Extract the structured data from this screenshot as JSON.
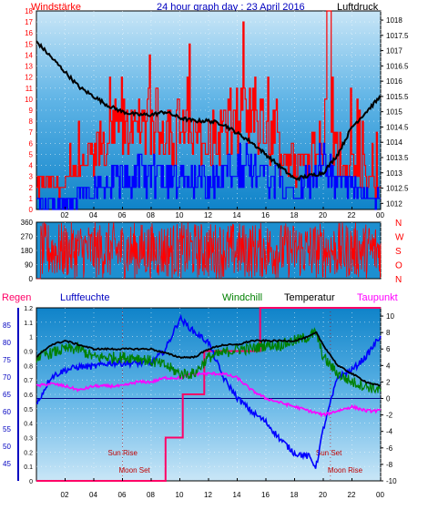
{
  "header": {
    "title": "24 hour graph day : 23 April 2016",
    "left_label": "Windstärke",
    "right_label": "Luftdruck"
  },
  "legend": {
    "regen": "Regen",
    "luftfeuchte": "Luftfeuchte",
    "windchill": "Windchill",
    "temperatur": "Temperatur",
    "taupunkt": "Taupunkt"
  },
  "colors": {
    "background": "#1d8fd0",
    "pressure": "#000000",
    "wind_gust": "#ff0000",
    "wind_avg": "#0000ff",
    "direction": "#ff0000",
    "humidity": "#0000ff",
    "windchill": "#008000",
    "temperature": "#000000",
    "dewpoint": "#ff00ff",
    "rain": "#ff0066",
    "zero_line": "#000080"
  },
  "annotations": {
    "sun_rise": "Sun Rise",
    "moon_set": "Moon Set",
    "sun_set": "Sun Set",
    "moon_rise": "Moon Rise"
  },
  "chart_data": [
    {
      "type": "line",
      "name": "wind-pressure",
      "x_ticks": [
        "02",
        "04",
        "06",
        "08",
        "10",
        "12",
        "14",
        "16",
        "18",
        "20",
        "22",
        "00"
      ],
      "y_left_ticks": [
        "0",
        "1",
        "2",
        "3",
        "4",
        "5",
        "6",
        "7",
        "8",
        "9",
        "10",
        "11",
        "12",
        "13",
        "14",
        "15",
        "16",
        "17",
        "18"
      ],
      "y_left_range": [
        0,
        18
      ],
      "y_right_ticks": [
        "1012",
        "1012.5",
        "1013",
        "1013.5",
        "1014",
        "1014.5",
        "1015",
        "1015.5",
        "1016",
        "1016.5",
        "1017",
        "1017.5",
        "1018"
      ],
      "y_right_range": [
        1011.8,
        1018.3
      ],
      "pressure": {
        "x": [
          0,
          1,
          2,
          3,
          4,
          5,
          6,
          7,
          8,
          9,
          10,
          11,
          12,
          13,
          14,
          15,
          16,
          17,
          18,
          19,
          20,
          21,
          22,
          23,
          24
        ],
        "y": [
          1017.3,
          1016.8,
          1016.3,
          1015.8,
          1015.5,
          1015.2,
          1015.0,
          1014.9,
          1014.9,
          1015.0,
          1014.8,
          1014.7,
          1014.7,
          1014.6,
          1014.3,
          1014.0,
          1013.6,
          1013.2,
          1012.8,
          1012.9,
          1013.0,
          1013.6,
          1014.5,
          1015.0,
          1015.5
        ]
      },
      "gust_profile": {
        "x": [
          0,
          2,
          4,
          6,
          8,
          10,
          12,
          14,
          16,
          18,
          19,
          20,
          20.3,
          20.6,
          21,
          22,
          24
        ],
        "y": [
          2,
          2,
          5,
          7,
          8,
          7,
          6,
          8,
          7,
          4,
          5,
          7,
          18,
          6,
          5,
          4,
          2
        ]
      },
      "avg_profile": {
        "x": [
          0,
          2,
          4,
          6,
          8,
          10,
          12,
          14,
          16,
          18,
          20,
          22,
          24
        ],
        "y": [
          0.5,
          0.5,
          2,
          3,
          3,
          3,
          2.5,
          4,
          3,
          2,
          4,
          2,
          1
        ]
      }
    },
    {
      "type": "scatter",
      "name": "wind-direction",
      "y_ticks_left": [
        "360",
        "270",
        "180",
        "90",
        "0"
      ],
      "y_range": [
        0,
        360
      ],
      "y_labels_right": [
        "N",
        "W",
        "S",
        "O",
        "N"
      ],
      "x_range": [
        0,
        24
      ]
    },
    {
      "type": "line",
      "name": "temperature-humidity",
      "x_ticks": [
        "02",
        "04",
        "06",
        "08",
        "10",
        "12",
        "14",
        "16",
        "18",
        "20",
        "22",
        "00"
      ],
      "rain_ticks": [
        "0",
        "0.1",
        "0.2",
        "0.3",
        "0.4",
        "0.5",
        "0.6",
        "0.7",
        "0.8",
        "0.9",
        "1",
        "1.1",
        "1.2"
      ],
      "rain_range": [
        0,
        1.2
      ],
      "humidity_ticks": [
        "45",
        "50",
        "55",
        "60",
        "65",
        "70",
        "75",
        "80",
        "85"
      ],
      "humidity_range": [
        40,
        90
      ],
      "temp_ticks": [
        "-10",
        "-8",
        "-6",
        "-4",
        "-2",
        "0",
        "2",
        "4",
        "6",
        "8",
        "10"
      ],
      "temp_range": [
        -10,
        11
      ],
      "temperature": {
        "x": [
          0,
          1,
          2,
          3,
          4,
          5,
          6,
          7,
          8,
          9,
          10,
          11,
          12,
          13,
          14,
          15,
          16,
          17,
          18,
          19,
          19.5,
          20,
          21,
          22,
          23,
          24
        ],
        "y": [
          5,
          6.5,
          7,
          6.5,
          6,
          6,
          6,
          6,
          6,
          5.5,
          5,
          5,
          6,
          6.5,
          6.5,
          7,
          7,
          7,
          7,
          7.5,
          8,
          6.5,
          4,
          3,
          2,
          1.5
        ]
      },
      "windchill": {
        "x": [
          0,
          1,
          2,
          3,
          4,
          5,
          6,
          7,
          8,
          9,
          10,
          11,
          12,
          13,
          14,
          15,
          16,
          17,
          18,
          19,
          19.5,
          20,
          21,
          22,
          23,
          24
        ],
        "y": [
          5,
          5.5,
          6,
          6,
          5,
          5,
          5,
          5,
          4.5,
          4,
          3,
          3,
          5,
          5.5,
          6,
          6,
          6.5,
          6.5,
          7,
          7.5,
          8,
          5,
          3,
          2,
          1.5,
          1
        ]
      },
      "dewpoint": {
        "x": [
          0,
          1,
          2,
          3,
          4,
          5,
          6,
          7,
          8,
          9,
          10,
          11,
          12,
          13,
          14,
          15,
          16,
          17,
          18,
          19,
          20,
          21,
          22,
          23,
          24
        ],
        "y": [
          1.5,
          1.8,
          1.5,
          1,
          1.5,
          1.5,
          1.5,
          2,
          2,
          2.5,
          2.5,
          3,
          3,
          3,
          2.5,
          1,
          0,
          -0.5,
          -1,
          -1.5,
          -2,
          -1.5,
          -1,
          -1.5,
          -1.5
        ]
      },
      "humidity": {
        "x": [
          0,
          1,
          2,
          3,
          4,
          5,
          6,
          7,
          8,
          9,
          10,
          11,
          12,
          13,
          14,
          15,
          16,
          17,
          18,
          19,
          19.5,
          20,
          21,
          22,
          23,
          24
        ],
        "y": [
          62,
          70,
          72,
          73,
          73,
          74,
          74,
          74,
          74,
          78,
          87,
          83,
          80,
          70,
          64,
          60,
          57,
          52,
          48,
          47,
          44,
          55,
          70,
          72,
          76,
          82
        ]
      },
      "rain": {
        "x": [
          0,
          9,
          9,
          10.2,
          10.2,
          11.7,
          11.7,
          15.6,
          15.6,
          24
        ],
        "y": [
          0,
          0,
          0.3,
          0.3,
          0.6,
          0.6,
          0.9,
          0.9,
          1.2,
          1.2
        ]
      },
      "events": {
        "sun_rise": 6.0,
        "moon_set": 6.0,
        "sun_set": 20.5,
        "moon_rise": 20.5
      }
    }
  ]
}
